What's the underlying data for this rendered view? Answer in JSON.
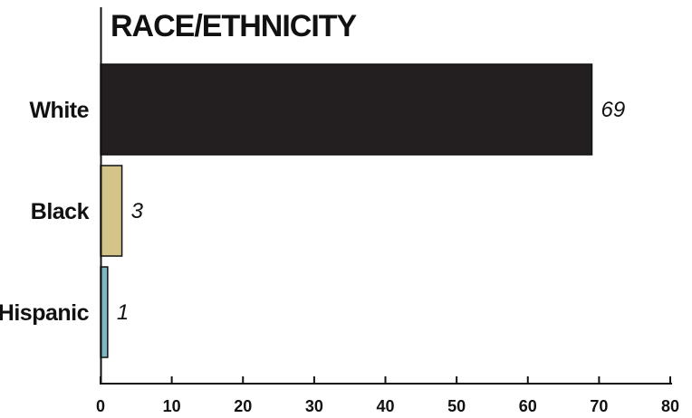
{
  "chart_data": {
    "type": "bar",
    "orientation": "horizontal",
    "title": "RACE/ETHNICITY",
    "categories": [
      "White",
      "Black",
      "Hispanic"
    ],
    "values": [
      69,
      3,
      1
    ],
    "value_labels": [
      "69",
      "3",
      "1"
    ],
    "colors": [
      "#231f20",
      "#d4c48a",
      "#7fb8c2"
    ],
    "xlim": [
      0,
      80
    ],
    "xticks": [
      0,
      10,
      20,
      30,
      40,
      50,
      60,
      70,
      80
    ],
    "xtick_labels": [
      "0",
      "10",
      "20",
      "30",
      "40",
      "50",
      "60",
      "70",
      "80"
    ],
    "grid": false,
    "legend": "none"
  }
}
